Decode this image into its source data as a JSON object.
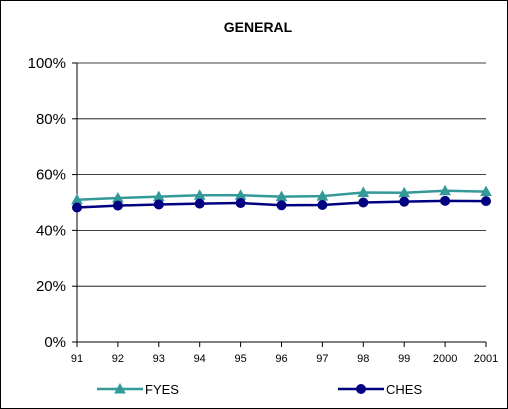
{
  "chart_data": {
    "type": "line",
    "title": "GENERAL",
    "xlabel": "",
    "ylabel": "",
    "categories": [
      "91",
      "92",
      "93",
      "94",
      "95",
      "96",
      "97",
      "98",
      "99",
      "2000",
      "2001"
    ],
    "y_ticks": [
      "0%",
      "20%",
      "40%",
      "60%",
      "80%",
      "100%"
    ],
    "ylim": [
      0,
      100
    ],
    "grid": true,
    "legend_position": "bottom",
    "series": [
      {
        "name": "FYES",
        "color": "#339999",
        "marker": "triangle",
        "values": [
          51,
          51.6,
          52.1,
          52.6,
          52.6,
          52.1,
          52.3,
          53.6,
          53.5,
          54.2,
          53.9
        ]
      },
      {
        "name": "CHES",
        "color": "#000080",
        "marker": "circle",
        "values": [
          48.2,
          48.9,
          49.3,
          49.6,
          49.8,
          49,
          49.1,
          50,
          50.3,
          50.6,
          50.5
        ]
      }
    ]
  }
}
